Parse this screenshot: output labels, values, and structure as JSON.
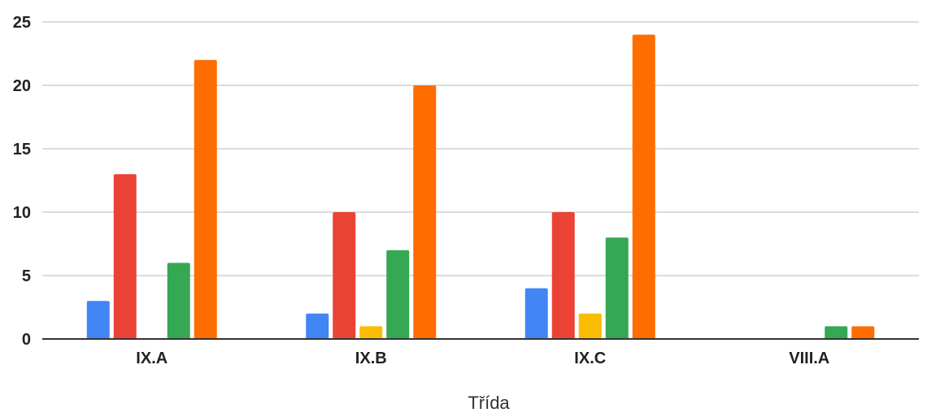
{
  "chart_data": {
    "type": "bar",
    "title": "",
    "xlabel": "Třída",
    "ylabel": "",
    "categories": [
      "IX.A",
      "IX.B",
      "IX.C",
      "VIII.A"
    ],
    "ylim": [
      0,
      25
    ],
    "yticks": [
      0,
      5,
      10,
      15,
      20,
      25
    ],
    "grid": true,
    "legend": "none",
    "series": [
      {
        "color": "#4285F4",
        "values": [
          3,
          2,
          4,
          0
        ]
      },
      {
        "color": "#EA4335",
        "values": [
          13,
          10,
          10,
          0
        ]
      },
      {
        "color": "#FBBC04",
        "values": [
          0,
          1,
          2,
          0
        ]
      },
      {
        "color": "#34A853",
        "values": [
          6,
          7,
          8,
          1
        ]
      },
      {
        "color": "#FF6D01",
        "values": [
          22,
          20,
          24,
          1
        ]
      }
    ]
  }
}
